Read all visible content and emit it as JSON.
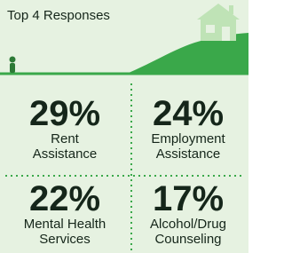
{
  "header": {
    "title": "Top 4 Responses"
  },
  "items": [
    {
      "value": "29%",
      "lines": [
        "Rent",
        "Assistance"
      ]
    },
    {
      "value": "24%",
      "lines": [
        "Employment",
        "Assistance"
      ]
    },
    {
      "value": "22%",
      "lines": [
        "Mental Health",
        "Services"
      ]
    },
    {
      "value": "17%",
      "lines": [
        "Alcohol/Drug",
        "Counseling"
      ]
    }
  ]
}
